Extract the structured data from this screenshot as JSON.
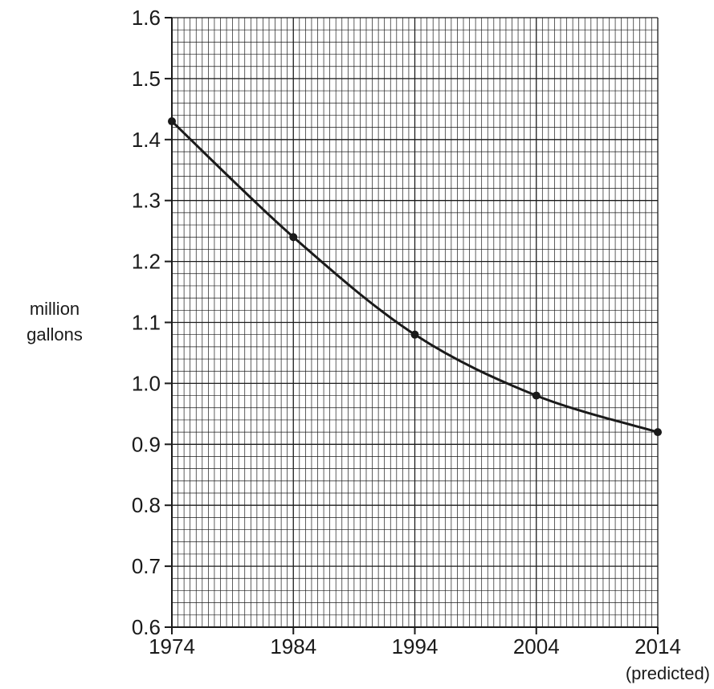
{
  "chart_data": {
    "type": "line",
    "title": "",
    "xlabel": "",
    "ylabel": "million gallons",
    "ylabel_lines": [
      "million",
      "gallons"
    ],
    "x": [
      1974,
      1984,
      1994,
      2004,
      2014
    ],
    "x_tick_labels": [
      "1974",
      "1984",
      "1994",
      "2004",
      "2014"
    ],
    "x_notes": [
      {
        "x": 2014,
        "text": "(predicted)"
      }
    ],
    "xlim": [
      1974,
      2014
    ],
    "ylim": [
      0.6,
      1.6
    ],
    "y_ticks": [
      0.6,
      0.7,
      0.8,
      0.9,
      1.0,
      1.1,
      1.2,
      1.3,
      1.4,
      1.5,
      1.6
    ],
    "y_tick_labels": [
      "0.6",
      "0.7",
      "0.8",
      "0.9",
      "1.0",
      "1.1",
      "1.2",
      "1.3",
      "1.4",
      "1.5",
      "1.6"
    ],
    "grid": true,
    "grid_minor_per_major_x": 20,
    "grid_minor_per_major_y": 5,
    "series": [
      {
        "values": [
          1.43,
          1.24,
          1.08,
          0.98,
          0.92
        ]
      }
    ],
    "colors": {
      "line": "#1a1a1a",
      "grid": "#1a1a1a"
    }
  }
}
